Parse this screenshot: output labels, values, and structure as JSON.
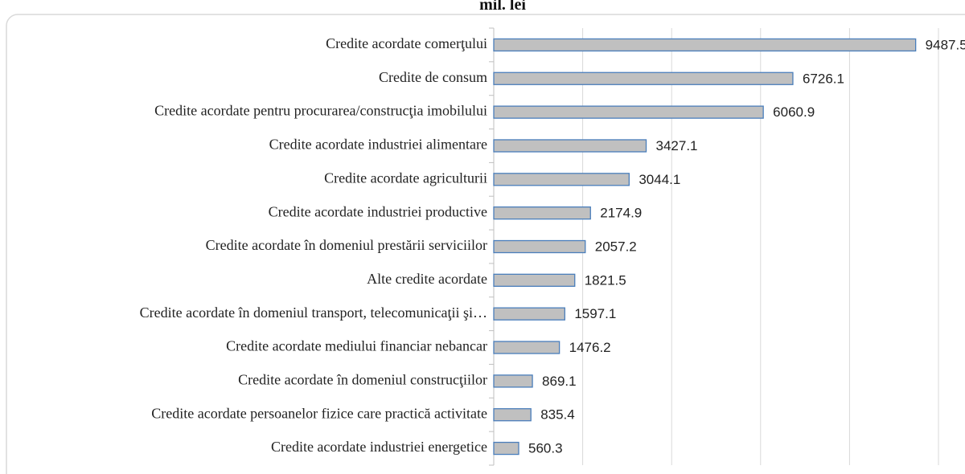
{
  "chart_data": {
    "type": "bar",
    "orientation": "horizontal",
    "title": "mil. lei",
    "categories": [
      "Credite acordate comerţului",
      "Credite de consum",
      "Credite acordate pentru procurarea/construcţia imobilului",
      "Credite acordate industriei alimentare",
      "Credite acordate agriculturii",
      "Credite acordate industriei productive",
      "Credite acordate în domeniul prestării serviciilor",
      "Alte credite acordate",
      "Credite acordate în domeniul transport, telecomunicaţii şi…",
      "Credite acordate mediului financiar nebancar",
      "Credite acordate în domeniul construcţiilor",
      "Credite acordate persoanelor fizice care practică activitate",
      "Credite acordate industriei energetice"
    ],
    "values": [
      9487.5,
      6726.1,
      6060.9,
      3427.1,
      3044.1,
      2174.9,
      2057.2,
      1821.5,
      1597.1,
      1476.2,
      869.1,
      835.4,
      560.3
    ],
    "color": "#c0c0c0",
    "edge_color": "#4a7ebb",
    "xlim": [
      0,
      10000
    ],
    "xticks": [
      0,
      2000,
      4000,
      6000,
      8000,
      10000
    ],
    "grid": true
  }
}
